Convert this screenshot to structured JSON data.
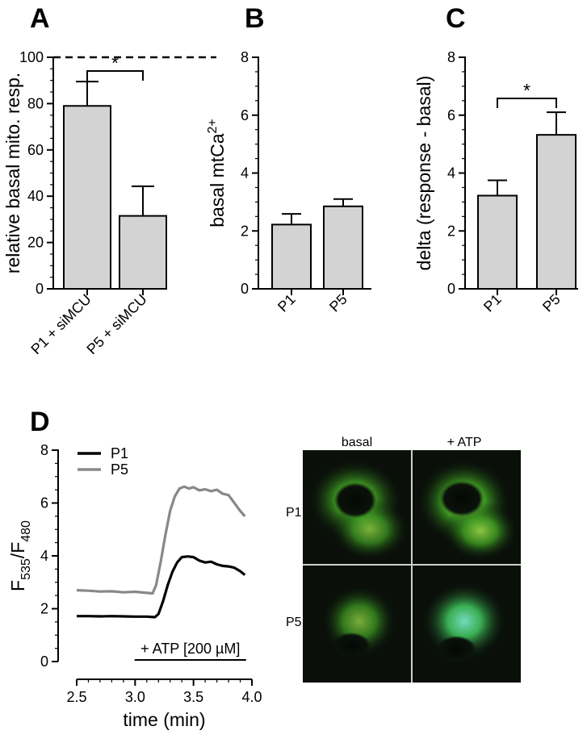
{
  "panel_labels": [
    "A",
    "B",
    "C",
    "D"
  ],
  "chart_data": [
    {
      "id": "A",
      "type": "bar",
      "categories": [
        "P1 + siMCU",
        "P5 + siMCU"
      ],
      "values": [
        79,
        31.5
      ],
      "errors": [
        10.5,
        12.8
      ],
      "ylabel": "relative basal mito. resp.",
      "ylim": [
        0,
        100
      ],
      "yticks": [
        0,
        20,
        40,
        60,
        80,
        100
      ],
      "reference_line": 100,
      "significance": [
        {
          "from": 0,
          "to": 1,
          "label": "*"
        }
      ]
    },
    {
      "id": "B",
      "type": "bar",
      "categories": [
        "P1",
        "P5"
      ],
      "values": [
        2.22,
        2.85
      ],
      "errors": [
        0.37,
        0.25
      ],
      "ylabel": "basal mtCa",
      "ylabel_sup": "2+",
      "ylim": [
        0,
        8
      ],
      "yticks": [
        0,
        2,
        4,
        6,
        8
      ]
    },
    {
      "id": "C",
      "type": "bar",
      "categories": [
        "P1",
        "P5"
      ],
      "values": [
        3.22,
        5.32
      ],
      "errors": [
        0.53,
        0.78
      ],
      "ylabel": "delta (response - basal)",
      "ylim": [
        0,
        8
      ],
      "yticks": [
        0,
        2,
        4,
        6,
        8
      ],
      "significance": [
        {
          "from": 0,
          "to": 1,
          "label": "*"
        }
      ]
    },
    {
      "id": "D",
      "type": "line",
      "xlabel": "time (min)",
      "ylabel_main": "F",
      "ylabel_sub1": "535",
      "ylabel_sep": "/F",
      "ylabel_sub2": "480",
      "xlim": [
        2.5,
        4.0
      ],
      "ylim": [
        0,
        8
      ],
      "xticks": [
        2.5,
        3.0,
        3.5,
        4.0
      ],
      "xtick_labels": [
        "2.5",
        "3.0",
        "3.5",
        "4.0"
      ],
      "yticks": [
        0,
        2,
        4,
        6,
        8
      ],
      "legend_position": "top-left",
      "annotation": {
        "label": "+ ATP [200 µM]",
        "x_start": 3.12,
        "x_end": 3.95
      },
      "series": [
        {
          "name": "P1",
          "color": "#000000",
          "x": [
            2.5,
            2.6,
            2.7,
            2.8,
            2.9,
            3.0,
            3.1,
            3.17,
            3.2,
            3.24,
            3.28,
            3.32,
            3.36,
            3.4,
            3.45,
            3.5,
            3.55,
            3.6,
            3.65,
            3.7,
            3.75,
            3.8,
            3.85,
            3.9,
            3.94
          ],
          "y": [
            1.72,
            1.72,
            1.71,
            1.72,
            1.71,
            1.7,
            1.7,
            1.68,
            1.8,
            2.3,
            2.9,
            3.4,
            3.75,
            3.95,
            3.98,
            3.95,
            3.82,
            3.75,
            3.78,
            3.68,
            3.62,
            3.6,
            3.55,
            3.42,
            3.28
          ]
        },
        {
          "name": "P5",
          "color": "#888888",
          "x": [
            2.5,
            2.6,
            2.7,
            2.8,
            2.9,
            3.0,
            3.1,
            3.15,
            3.18,
            3.22,
            3.26,
            3.3,
            3.34,
            3.38,
            3.42,
            3.46,
            3.5,
            3.55,
            3.6,
            3.65,
            3.7,
            3.75,
            3.8,
            3.85,
            3.9,
            3.94
          ],
          "y": [
            2.7,
            2.68,
            2.65,
            2.66,
            2.62,
            2.64,
            2.6,
            2.58,
            2.9,
            3.8,
            4.8,
            5.7,
            6.25,
            6.55,
            6.62,
            6.55,
            6.6,
            6.48,
            6.52,
            6.45,
            6.5,
            6.35,
            6.3,
            6.0,
            5.7,
            5.5
          ]
        }
      ]
    }
  ],
  "micrographs": {
    "col_labels": [
      "basal",
      "+ ATP"
    ],
    "row_labels": [
      "P1",
      "P5"
    ]
  }
}
